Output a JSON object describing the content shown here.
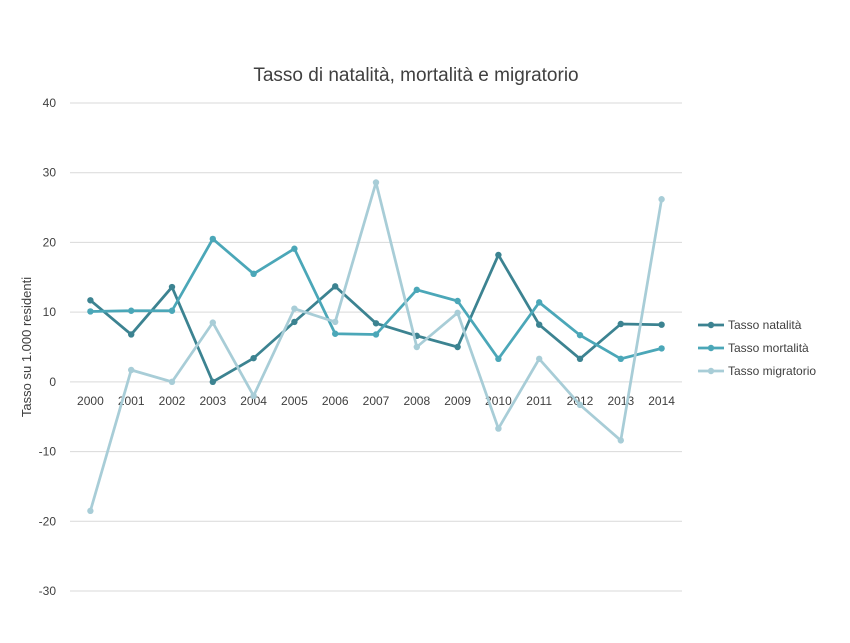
{
  "chart_data": {
    "type": "line",
    "title": "Tasso di natalità, mortalità e migratorio",
    "xlabel": "",
    "ylabel": "Tasso su 1.000 residenti",
    "ylim": [
      -30,
      40
    ],
    "yticks": [
      -30,
      -20,
      -10,
      0,
      10,
      20,
      30,
      40
    ],
    "categories": [
      "2000",
      "2001",
      "2002",
      "2003",
      "2004",
      "2005",
      "2006",
      "2007",
      "2008",
      "2009",
      "2010",
      "2011",
      "2012",
      "2013",
      "2014"
    ],
    "grid": true,
    "legend_position": "right",
    "series": [
      {
        "name": "Tasso natalità",
        "color": "#3c8391",
        "values": [
          11.7,
          6.8,
          13.6,
          0.0,
          3.4,
          8.6,
          13.7,
          8.4,
          6.6,
          5.0,
          18.2,
          8.2,
          3.3,
          8.3,
          8.2
        ]
      },
      {
        "name": "Tasso mortalità",
        "color": "#4ba7b8",
        "values": [
          10.1,
          10.2,
          10.2,
          20.5,
          15.5,
          19.1,
          6.9,
          6.8,
          13.2,
          11.6,
          3.3,
          11.4,
          6.7,
          3.3,
          4.8
        ]
      },
      {
        "name": "Tasso migratorio",
        "color": "#a8cdd7",
        "values": [
          -18.5,
          1.7,
          0.0,
          8.5,
          -2.0,
          10.5,
          8.6,
          28.6,
          5.0,
          9.9,
          -6.7,
          3.3,
          -3.3,
          -8.4,
          26.2
        ]
      }
    ]
  }
}
